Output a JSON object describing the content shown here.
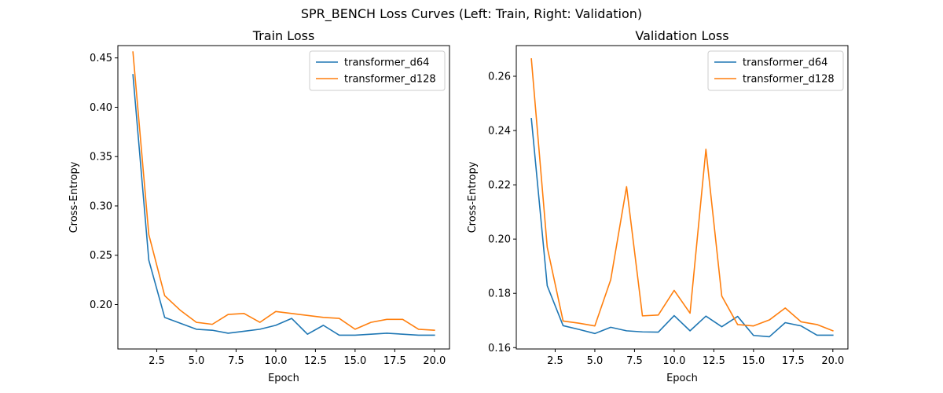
{
  "figure": {
    "suptitle": "SPR_BENCH Loss Curves (Left: Train, Right: Validation)"
  },
  "colors": {
    "transformer_d64": "#1f77b4",
    "transformer_d128": "#ff7f0e"
  },
  "chart_data": [
    {
      "type": "line",
      "title": "Train Loss",
      "xlabel": "Epoch",
      "ylabel": "Cross-Entropy",
      "xlim": [
        0.05,
        20.95
      ],
      "ylim": [
        0.155,
        0.4625
      ],
      "xticks": [
        2.5,
        5.0,
        7.5,
        10.0,
        12.5,
        15.0,
        17.5,
        20.0
      ],
      "xtick_labels": [
        "2.5",
        "5.0",
        "7.5",
        "10.0",
        "12.5",
        "15.0",
        "17.5",
        "20.0"
      ],
      "yticks": [
        0.2,
        0.25,
        0.3,
        0.35,
        0.4,
        0.45
      ],
      "ytick_labels": [
        "0.20",
        "0.25",
        "0.30",
        "0.35",
        "0.40",
        "0.45"
      ],
      "legend_position": "top-right",
      "x": [
        1,
        2,
        3,
        4,
        5,
        6,
        7,
        8,
        9,
        10,
        11,
        12,
        13,
        14,
        15,
        16,
        17,
        18,
        19,
        20
      ],
      "series": [
        {
          "name": "transformer_d64",
          "values": [
            0.433,
            0.245,
            0.187,
            0.181,
            0.175,
            0.174,
            0.171,
            0.173,
            0.175,
            0.179,
            0.186,
            0.17,
            0.179,
            0.169,
            0.169,
            0.17,
            0.171,
            0.17,
            0.169,
            0.169
          ]
        },
        {
          "name": "transformer_d128",
          "values": [
            0.456,
            0.271,
            0.209,
            0.194,
            0.182,
            0.18,
            0.19,
            0.191,
            0.182,
            0.193,
            0.191,
            0.189,
            0.187,
            0.186,
            0.175,
            0.182,
            0.185,
            0.185,
            0.175,
            0.174
          ]
        }
      ]
    },
    {
      "type": "line",
      "title": "Validation Loss",
      "xlabel": "Epoch",
      "ylabel": "Cross-Entropy",
      "xlim": [
        0.05,
        20.95
      ],
      "ylim": [
        0.1595,
        0.2713
      ],
      "xticks": [
        2.5,
        5.0,
        7.5,
        10.0,
        12.5,
        15.0,
        17.5,
        20.0
      ],
      "xtick_labels": [
        "2.5",
        "5.0",
        "7.5",
        "10.0",
        "12.5",
        "15.0",
        "17.5",
        "20.0"
      ],
      "yticks": [
        0.16,
        0.18,
        0.2,
        0.22,
        0.24,
        0.26
      ],
      "ytick_labels": [
        "0.16",
        "0.18",
        "0.20",
        "0.22",
        "0.24",
        "0.26"
      ],
      "legend_position": "top-right",
      "x": [
        1,
        2,
        3,
        4,
        5,
        6,
        7,
        8,
        9,
        10,
        11,
        12,
        13,
        14,
        15,
        16,
        17,
        18,
        19,
        20
      ],
      "series": [
        {
          "name": "transformer_d64",
          "values": [
            0.2444,
            0.1828,
            0.1681,
            0.1667,
            0.1652,
            0.1675,
            0.1662,
            0.1658,
            0.1657,
            0.1718,
            0.1662,
            0.1716,
            0.1677,
            0.1715,
            0.1645,
            0.164,
            0.1692,
            0.168,
            0.1646,
            0.1646
          ]
        },
        {
          "name": "transformer_d128",
          "values": [
            0.2664,
            0.197,
            0.1698,
            0.169,
            0.168,
            0.185,
            0.2193,
            0.1717,
            0.172,
            0.1811,
            0.1727,
            0.2331,
            0.179,
            0.1685,
            0.168,
            0.1702,
            0.1746,
            0.1695,
            0.1685,
            0.1662
          ]
        }
      ]
    }
  ]
}
